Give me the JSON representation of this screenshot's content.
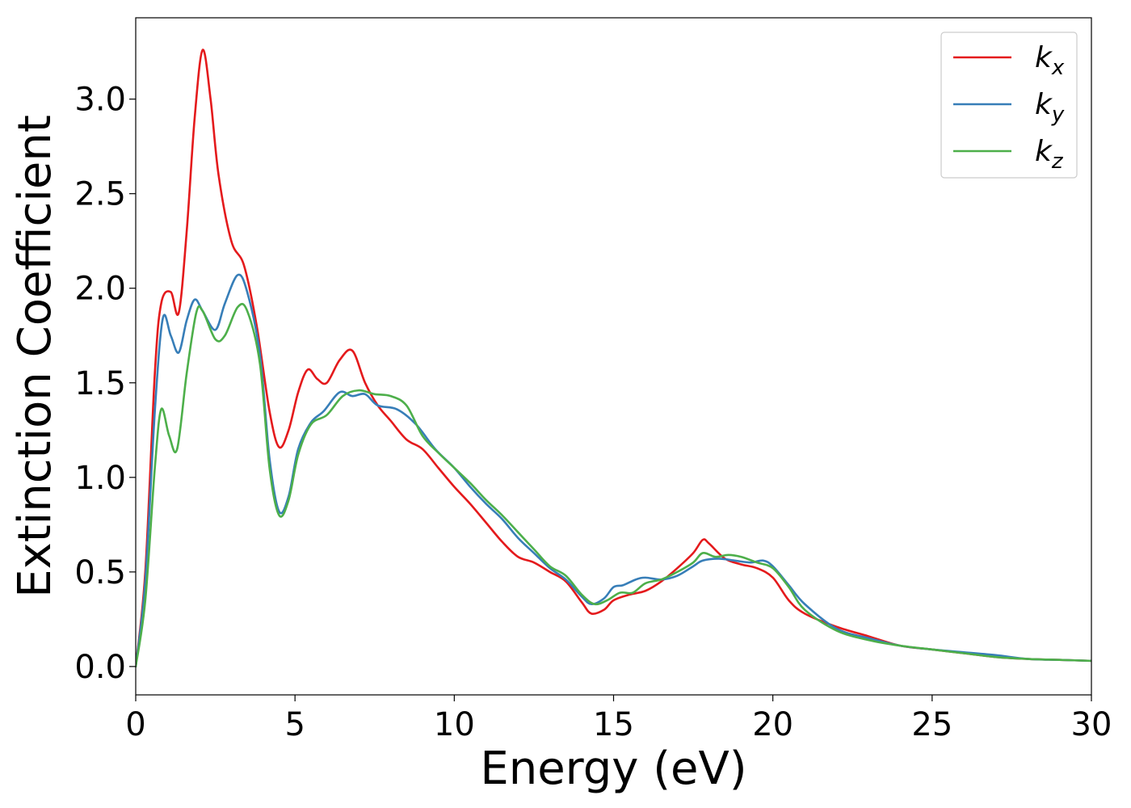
{
  "chart_data": {
    "type": "line",
    "xlabel": "Energy (eV)",
    "ylabel": "Extinction Coefficient",
    "xlim": [
      0,
      30
    ],
    "ylim": [
      -0.15,
      3.43
    ],
    "xticks": [
      0,
      5,
      10,
      15,
      20,
      25,
      30
    ],
    "xtick_labels": [
      "0",
      "5",
      "10",
      "15",
      "20",
      "25",
      "30"
    ],
    "yticks": [
      0.0,
      0.5,
      1.0,
      1.5,
      2.0,
      2.5,
      3.0
    ],
    "ytick_labels": [
      "0.0",
      "0.5",
      "1.0",
      "1.5",
      "2.0",
      "2.5",
      "3.0"
    ],
    "grid": false,
    "legend_position": "top-right",
    "series": [
      {
        "name": "k_x",
        "label_base": "k",
        "label_sub": "x",
        "color": "#e41a1c",
        "x": [
          0,
          0.3,
          0.6,
          0.8,
          1.1,
          1.35,
          1.6,
          1.85,
          2.1,
          2.35,
          2.6,
          3.0,
          3.4,
          3.8,
          4.2,
          4.5,
          4.8,
          5.1,
          5.4,
          5.7,
          6.0,
          6.4,
          6.8,
          7.2,
          7.6,
          8.0,
          8.5,
          9.0,
          9.5,
          10.0,
          10.5,
          11.0,
          11.5,
          12.0,
          12.5,
          13.0,
          13.5,
          14.0,
          14.3,
          14.7,
          15.0,
          15.5,
          16.0,
          16.5,
          17.0,
          17.5,
          17.8,
          18.0,
          18.5,
          19.0,
          19.5,
          20.0,
          20.5,
          21.0,
          22.0,
          23.0,
          24.0,
          25.0,
          26.0,
          27.0,
          28.0,
          29.0,
          30.0
        ],
        "y": [
          0.0,
          0.5,
          1.55,
          1.92,
          1.98,
          1.87,
          2.3,
          2.9,
          3.26,
          3.0,
          2.6,
          2.25,
          2.12,
          1.8,
          1.35,
          1.16,
          1.25,
          1.45,
          1.57,
          1.52,
          1.5,
          1.62,
          1.67,
          1.5,
          1.38,
          1.3,
          1.2,
          1.15,
          1.05,
          0.95,
          0.86,
          0.76,
          0.66,
          0.58,
          0.55,
          0.5,
          0.45,
          0.34,
          0.28,
          0.3,
          0.35,
          0.38,
          0.4,
          0.45,
          0.52,
          0.6,
          0.67,
          0.65,
          0.57,
          0.54,
          0.52,
          0.47,
          0.35,
          0.28,
          0.21,
          0.16,
          0.11,
          0.09,
          0.07,
          0.05,
          0.04,
          0.035,
          0.03
        ]
      },
      {
        "name": "k_y",
        "label_base": "k",
        "label_sub": "y",
        "color": "#377eb8",
        "x": [
          0,
          0.3,
          0.6,
          0.85,
          1.1,
          1.35,
          1.6,
          1.85,
          2.1,
          2.5,
          2.8,
          3.2,
          3.5,
          3.9,
          4.2,
          4.5,
          4.8,
          5.1,
          5.5,
          5.9,
          6.4,
          6.8,
          7.2,
          7.6,
          8.2,
          8.8,
          9.4,
          10.0,
          10.5,
          11.0,
          11.5,
          12.0,
          12.5,
          13.0,
          13.5,
          14.0,
          14.3,
          14.7,
          15.0,
          15.3,
          15.7,
          16.0,
          16.5,
          17.0,
          17.5,
          17.8,
          18.3,
          18.8,
          19.3,
          19.7,
          20.0,
          20.5,
          21.0,
          22.0,
          23.0,
          24.0,
          25.0,
          26.0,
          27.0,
          28.0,
          29.0,
          30.0
        ],
        "y": [
          0.0,
          0.45,
          1.35,
          1.84,
          1.75,
          1.66,
          1.83,
          1.94,
          1.88,
          1.78,
          1.92,
          2.07,
          1.98,
          1.65,
          1.1,
          0.82,
          0.9,
          1.15,
          1.29,
          1.35,
          1.45,
          1.43,
          1.44,
          1.38,
          1.36,
          1.28,
          1.15,
          1.05,
          0.95,
          0.86,
          0.78,
          0.68,
          0.6,
          0.52,
          0.46,
          0.37,
          0.33,
          0.36,
          0.42,
          0.43,
          0.46,
          0.47,
          0.46,
          0.48,
          0.53,
          0.56,
          0.57,
          0.56,
          0.55,
          0.56,
          0.53,
          0.43,
          0.33,
          0.2,
          0.15,
          0.11,
          0.09,
          0.075,
          0.06,
          0.04,
          0.035,
          0.03
        ]
      },
      {
        "name": "k_z",
        "label_base": "k",
        "label_sub": "z",
        "color": "#4daf4a",
        "x": [
          0,
          0.3,
          0.6,
          0.8,
          1.05,
          1.3,
          1.6,
          1.9,
          2.1,
          2.5,
          2.8,
          3.2,
          3.5,
          3.9,
          4.2,
          4.5,
          4.8,
          5.1,
          5.5,
          6.0,
          6.5,
          7.0,
          7.5,
          8.0,
          8.5,
          9.0,
          9.5,
          10.0,
          10.5,
          11.0,
          11.5,
          12.0,
          12.5,
          13.0,
          13.5,
          14.0,
          14.4,
          14.8,
          15.2,
          15.6,
          16.0,
          16.5,
          17.0,
          17.5,
          17.8,
          18.2,
          18.6,
          19.0,
          19.5,
          20.0,
          20.5,
          21.0,
          22.0,
          23.0,
          24.0,
          25.0,
          26.0,
          27.0,
          28.0,
          29.0,
          30.0
        ],
        "y": [
          0.0,
          0.35,
          1.05,
          1.36,
          1.22,
          1.15,
          1.55,
          1.87,
          1.88,
          1.73,
          1.75,
          1.9,
          1.88,
          1.6,
          1.05,
          0.8,
          0.88,
          1.12,
          1.28,
          1.33,
          1.43,
          1.46,
          1.44,
          1.43,
          1.38,
          1.22,
          1.13,
          1.05,
          0.97,
          0.88,
          0.8,
          0.71,
          0.62,
          0.53,
          0.48,
          0.38,
          0.33,
          0.35,
          0.39,
          0.39,
          0.44,
          0.46,
          0.5,
          0.55,
          0.6,
          0.58,
          0.59,
          0.58,
          0.55,
          0.52,
          0.42,
          0.3,
          0.19,
          0.14,
          0.11,
          0.09,
          0.07,
          0.05,
          0.04,
          0.035,
          0.03
        ]
      }
    ]
  }
}
